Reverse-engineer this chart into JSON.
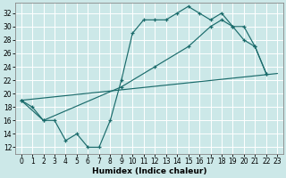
{
  "bg_color": "#cce8e8",
  "line_color": "#1a6b6b",
  "grid_color": "#ffffff",
  "xlim": [
    -0.5,
    23.5
  ],
  "ylim": [
    11.0,
    33.5
  ],
  "yticks": [
    12,
    14,
    16,
    18,
    20,
    22,
    24,
    26,
    28,
    30,
    32
  ],
  "xticks": [
    0,
    1,
    2,
    3,
    4,
    5,
    6,
    7,
    8,
    9,
    10,
    11,
    12,
    13,
    14,
    15,
    16,
    17,
    18,
    19,
    20,
    21,
    22,
    23
  ],
  "xlabel": "Humidex (Indice chaleur)",
  "curve1_x": [
    0,
    1,
    2,
    3,
    4,
    5,
    6,
    7,
    8,
    9,
    10,
    11,
    12,
    13,
    14,
    15,
    16,
    17,
    18,
    19,
    20,
    21,
    22
  ],
  "curve1_y": [
    19,
    18,
    16,
    16,
    13,
    14,
    12,
    12,
    16,
    22,
    29,
    31,
    31,
    31,
    32,
    33,
    32,
    31,
    32,
    30,
    28,
    27,
    23
  ],
  "curve2_x": [
    0,
    23
  ],
  "curve2_y": [
    19,
    23
  ],
  "curve3_x": [
    0,
    2,
    9,
    12,
    15,
    17,
    18,
    19,
    20,
    21,
    22
  ],
  "curve3_y": [
    19,
    16,
    21,
    24,
    27,
    30,
    31,
    30,
    30,
    27,
    23
  ],
  "marker_size": 3.0,
  "lw": 0.85,
  "tick_fontsize": 5.5,
  "xlabel_fontsize": 6.5
}
